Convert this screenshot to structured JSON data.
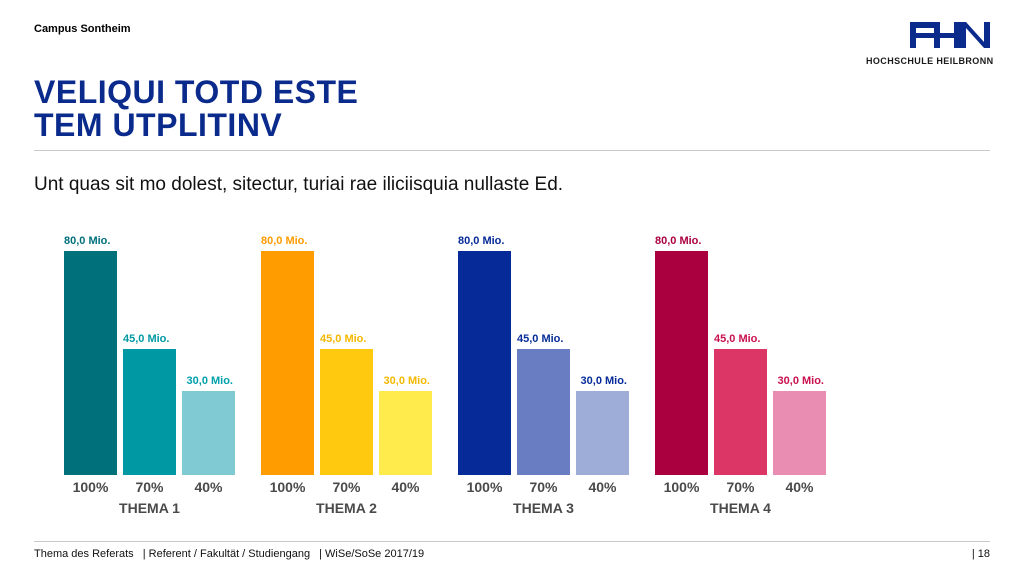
{
  "header": {
    "campus": "Campus Sontheim",
    "logo_text": "HOCHSCHULE HEILBRONN",
    "title_line1": "VELIQUI TOTD ESTE",
    "title_line2": "TEM UTPLITINV",
    "subtitle": "Unt quas sit mo dolest, sitectur, turiai rae iliciisquia nullaste Ed."
  },
  "colors": {
    "title": "#0a2a8c",
    "logo": "#0a2a8c"
  },
  "chart_data": {
    "type": "bar",
    "unit_label": "Mio.",
    "ylim": [
      0,
      80
    ],
    "groups": [
      {
        "name": "THEMA 1",
        "categories": [
          "100%",
          "70%",
          "40%"
        ],
        "values": [
          80.0,
          45.0,
          30.0
        ],
        "labels": [
          "80,0 Mio.",
          "45,0 Mio.",
          "30,0 Mio."
        ],
        "colors": [
          "#00707a",
          "#0099a3",
          "#80cad3"
        ],
        "label_colors": [
          "#00707a",
          "#0099a3",
          "#00a0ab"
        ]
      },
      {
        "name": "THEMA 2",
        "categories": [
          "100%",
          "70%",
          "40%"
        ],
        "values": [
          80.0,
          45.0,
          30.0
        ],
        "labels": [
          "80,0 Mio.",
          "45,0 Mio.",
          "30,0 Mio."
        ],
        "colors": [
          "#ff9c00",
          "#ffc90f",
          "#ffeb4c"
        ],
        "label_colors": [
          "#ff9c00",
          "#f5b800",
          "#f5b800"
        ]
      },
      {
        "name": "THEMA 3",
        "categories": [
          "100%",
          "70%",
          "40%"
        ],
        "values": [
          80.0,
          45.0,
          30.0
        ],
        "labels": [
          "80,0 Mio.",
          "45,0 Mio.",
          "30,0 Mio."
        ],
        "colors": [
          "#062b98",
          "#687dc2",
          "#9eadd8"
        ],
        "label_colors": [
          "#062b98",
          "#062b98",
          "#062b98"
        ]
      },
      {
        "name": "THEMA 4",
        "categories": [
          "100%",
          "70%",
          "40%"
        ],
        "values": [
          80.0,
          45.0,
          30.0
        ],
        "labels": [
          "80,0 Mio.",
          "45,0 Mio.",
          "30,0 Mio."
        ],
        "colors": [
          "#ab0040",
          "#dc3667",
          "#ea8db2"
        ],
        "label_colors": [
          "#ab0040",
          "#c8104e",
          "#c8104e"
        ]
      }
    ]
  },
  "footer": {
    "topic": "Thema des Referats",
    "referent": "| Referent / Fakultät / Studiengang",
    "semester": "| WiSe/SoSe 2017/19",
    "page": "|  18"
  }
}
